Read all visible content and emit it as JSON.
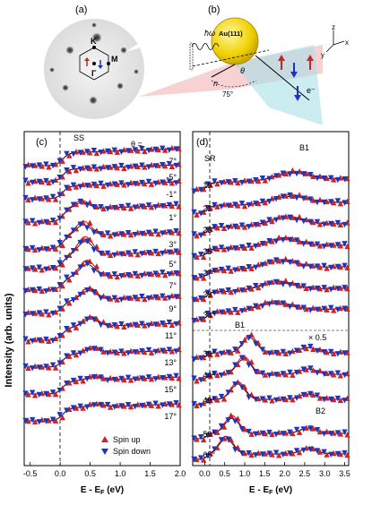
{
  "panels": {
    "a": "(a)",
    "b": "(b)",
    "c": "(c)",
    "d": "(d)"
  },
  "panel_a": {
    "label_K": "K",
    "label_M": "M",
    "label_Gamma": "Γ"
  },
  "panel_b": {
    "sample": "Au(111)",
    "photon": "ħω",
    "n_vec": "n",
    "angle_75": "75°",
    "theta": "θ",
    "electron": "e⁻",
    "axis_x": "x",
    "axis_y": "y",
    "axis_z": "z"
  },
  "ylabel": "Intensity (arb. units)",
  "colors": {
    "up": "#cc2222",
    "down": "#2233bb",
    "fit": "#111111",
    "fit_red": "#dd0000"
  },
  "chart_data": [
    {
      "type": "scatter",
      "panel": "(c)",
      "xlabel": "E - E",
      "xlabel_sub": "F",
      "xunit": " (eV)",
      "xlim": [
        -0.6,
        2.0
      ],
      "xticks": [
        "-0.5",
        "0.0",
        "0.5",
        "1.0",
        "1.5",
        "2.0"
      ],
      "annotation_SS": "SS",
      "theta_header": "θ =",
      "angles": [
        "-7°",
        "-5°",
        "-1°",
        "1°",
        "3°",
        "5°",
        "7°",
        "9°",
        "11°",
        "13°",
        "15°",
        "17°"
      ],
      "legend": [
        "Spin up",
        "Spin down"
      ]
    },
    {
      "type": "scatter",
      "panel": "(d)",
      "xlabel": "E - E",
      "xlabel_sub": "F",
      "xunit": " (eV)",
      "xlim": [
        -0.3,
        3.6
      ],
      "xticks": [
        "0.0",
        "0.5",
        "1.0",
        "1.5",
        "2.0",
        "2.5",
        "3.0",
        "3.5"
      ],
      "annotations": {
        "SR": "SR",
        "B1_top": "B1",
        "B1_mid": "B1",
        "B2": "B2",
        "scale": "× 0.5"
      },
      "angles_top": [
        "19°",
        "21°",
        "23°",
        "25°",
        "27°",
        "29°",
        "34°"
      ],
      "angles_bottom": [
        "39°",
        "44°",
        "49°",
        "59°",
        "65°"
      ]
    }
  ]
}
